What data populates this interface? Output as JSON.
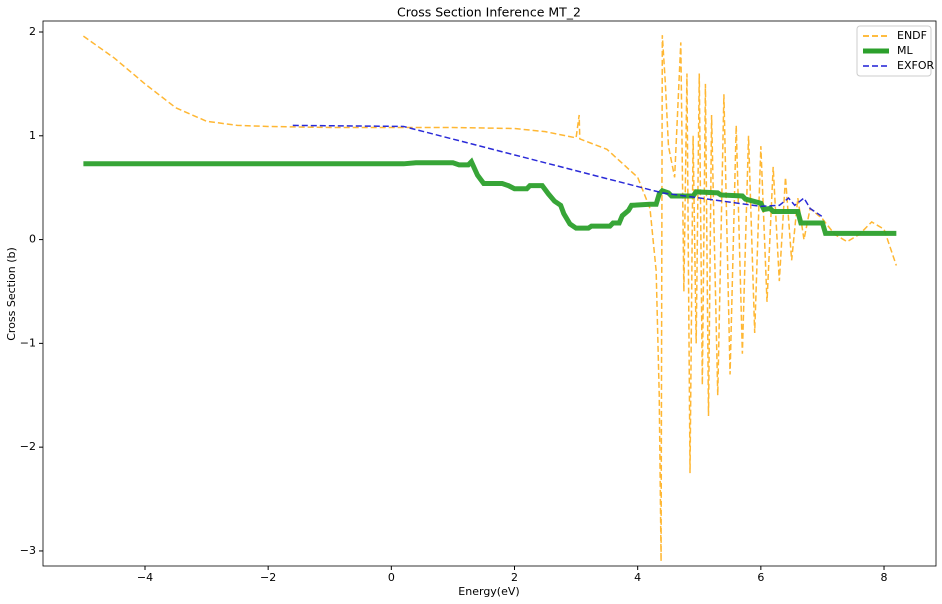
{
  "chart_data": {
    "type": "line",
    "title": "Cross Section Inference MT_2",
    "xlabel": "Energy(eV)",
    "ylabel": "Cross Section (b)",
    "xlim": [
      -5.656,
      8.844
    ],
    "ylim": [
      -3.145,
      2.106
    ],
    "xticks": [
      {
        "value": -4,
        "label": "−4"
      },
      {
        "value": -2,
        "label": "−2"
      },
      0,
      2,
      4,
      6,
      8
    ],
    "yticks": [
      {
        "value": -3,
        "label": "−3"
      },
      {
        "value": -2,
        "label": "−2"
      },
      {
        "value": -1,
        "label": "−1"
      },
      0,
      1,
      2
    ],
    "legend": "upper right",
    "series": [
      {
        "name": "ENDF",
        "color": "#ffa500",
        "linestyle": "dashed",
        "linewidth": 1.5,
        "x": [
          -5,
          -4.5,
          -4,
          -3.5,
          -3,
          -2.5,
          -2,
          -1,
          0,
          1,
          2,
          2.5,
          3,
          3.05,
          3.06,
          3.5,
          4,
          4.2,
          4.3,
          4.35,
          4.38,
          4.4,
          4.45,
          4.5,
          4.6,
          4.7,
          4.75,
          4.8,
          4.85,
          4.9,
          4.95,
          5.0,
          5.05,
          5.1,
          5.15,
          5.2,
          5.3,
          5.4,
          5.5,
          5.6,
          5.7,
          5.8,
          5.9,
          6.0,
          6.1,
          6.2,
          6.3,
          6.4,
          6.5,
          6.6,
          6.7,
          6.8,
          7.0,
          7.2,
          7.4,
          7.6,
          7.8,
          8.0,
          8.2
        ],
        "values": [
          1.96,
          1.75,
          1.5,
          1.27,
          1.14,
          1.1,
          1.09,
          1.08,
          1.08,
          1.08,
          1.07,
          1.04,
          0.98,
          1.2,
          0.97,
          0.87,
          0.6,
          0.3,
          -0.3,
          -1.5,
          -3.1,
          1.97,
          1.5,
          0.9,
          0.6,
          1.9,
          -0.5,
          1.6,
          -2.25,
          1.0,
          -1.0,
          1.6,
          -1.4,
          1.5,
          -1.7,
          1.2,
          -1.5,
          1.4,
          -1.3,
          1.1,
          -1.1,
          1.0,
          -0.9,
          0.9,
          -0.6,
          0.7,
          -0.4,
          0.6,
          -0.2,
          0.4,
          0.0,
          0.3,
          0.2,
          0.05,
          -0.02,
          0.05,
          0.17,
          0.1,
          -0.25
        ]
      },
      {
        "name": "ML",
        "color": "#2ca02c",
        "linestyle": "solid",
        "linewidth": 5,
        "x": [
          -5,
          0.2,
          0.4,
          1.0,
          1.1,
          1.25,
          1.3,
          1.4,
          1.5,
          1.8,
          1.9,
          2.0,
          2.2,
          2.25,
          2.45,
          2.55,
          2.65,
          2.75,
          2.8,
          2.9,
          3.0,
          3.2,
          3.25,
          3.55,
          3.6,
          3.7,
          3.75,
          3.85,
          3.9,
          4.2,
          4.3,
          4.35,
          4.4,
          4.5,
          4.55,
          4.9,
          4.95,
          5.3,
          5.35,
          5.7,
          5.75,
          6.0,
          6.05,
          6.15,
          6.2,
          6.6,
          6.65,
          7.0,
          7.05,
          8.2
        ],
        "values": [
          0.73,
          0.73,
          0.74,
          0.74,
          0.72,
          0.72,
          0.75,
          0.62,
          0.54,
          0.54,
          0.52,
          0.49,
          0.49,
          0.52,
          0.52,
          0.44,
          0.37,
          0.33,
          0.25,
          0.15,
          0.11,
          0.11,
          0.13,
          0.13,
          0.16,
          0.16,
          0.23,
          0.28,
          0.33,
          0.34,
          0.34,
          0.44,
          0.47,
          0.45,
          0.42,
          0.42,
          0.46,
          0.45,
          0.43,
          0.42,
          0.39,
          0.35,
          0.29,
          0.3,
          0.27,
          0.27,
          0.16,
          0.16,
          0.06,
          0.06
        ]
      },
      {
        "name": "EXFOR",
        "color": "#1f1fd6",
        "linestyle": "dashed",
        "linewidth": 1.5,
        "x": [
          -1.6,
          0.2,
          4.4,
          6.0,
          6.3,
          6.45,
          6.55,
          6.7,
          6.8,
          7.0
        ],
        "values": [
          1.1,
          1.09,
          0.45,
          0.32,
          0.33,
          0.4,
          0.33,
          0.4,
          0.3,
          0.22
        ]
      }
    ]
  }
}
